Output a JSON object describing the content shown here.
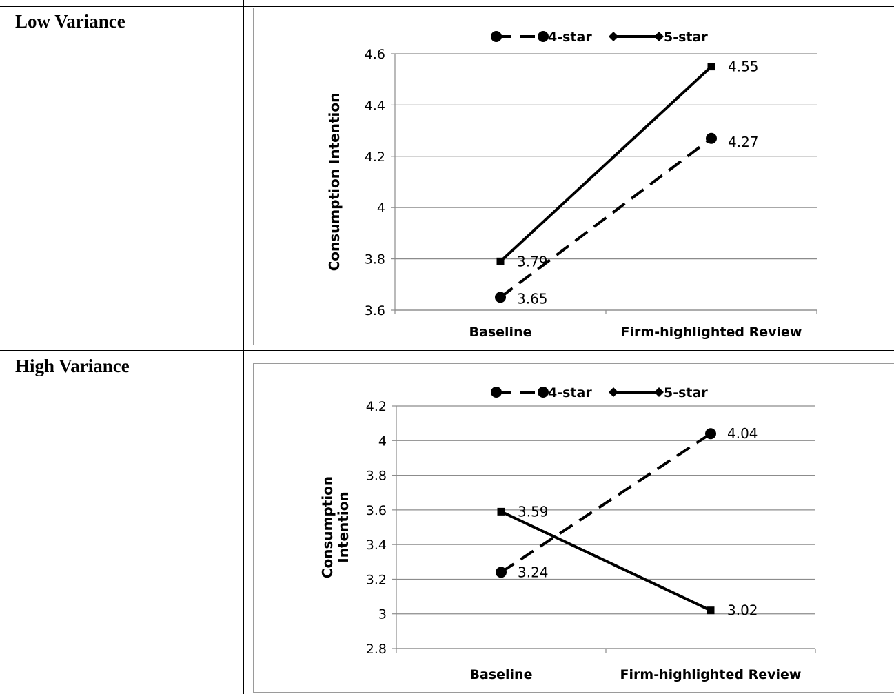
{
  "rows": [
    {
      "label": "Low Variance"
    },
    {
      "label": "High Variance"
    }
  ],
  "chart_data": [
    {
      "type": "line",
      "categories": [
        "Baseline",
        "Firm-highlighted Review"
      ],
      "ylabel": "Consumption Intention",
      "ylim": [
        3.6,
        4.6
      ],
      "yticks": [
        3.6,
        3.8,
        4,
        4.2,
        4.4,
        4.6
      ],
      "ytick_labels": [
        "3.6",
        "3.8",
        "4",
        "4.2",
        "4.4",
        "4.6"
      ],
      "grid": true,
      "legend_position": "top",
      "series": [
        {
          "name": "4-star",
          "values": [
            3.65,
            4.27
          ],
          "labels": [
            "3.65",
            "4.27"
          ],
          "style": "dashed",
          "marker": "circle"
        },
        {
          "name": "5-star",
          "values": [
            3.79,
            4.55
          ],
          "labels": [
            "3.79",
            "4.55"
          ],
          "style": "solid",
          "marker": "square"
        }
      ]
    },
    {
      "type": "line",
      "categories": [
        "Baseline",
        "Firm-highlighted Review"
      ],
      "ylabel": "Consumption Intention",
      "ylim": [
        2.8,
        4.2
      ],
      "yticks": [
        2.8,
        3,
        3.2,
        3.4,
        3.6,
        3.8,
        4,
        4.2
      ],
      "ytick_labels": [
        "2.8",
        "3",
        "3.2",
        "3.4",
        "3.6",
        "3.8",
        "4",
        "4.2"
      ],
      "grid": true,
      "legend_position": "top",
      "series": [
        {
          "name": "4-star",
          "values": [
            3.24,
            4.04
          ],
          "labels": [
            "3.24",
            "4.04"
          ],
          "style": "dashed",
          "marker": "circle"
        },
        {
          "name": "5-star",
          "values": [
            3.59,
            3.02
          ],
          "labels": [
            "3.59",
            "3.02"
          ],
          "style": "solid",
          "marker": "square"
        }
      ]
    }
  ]
}
